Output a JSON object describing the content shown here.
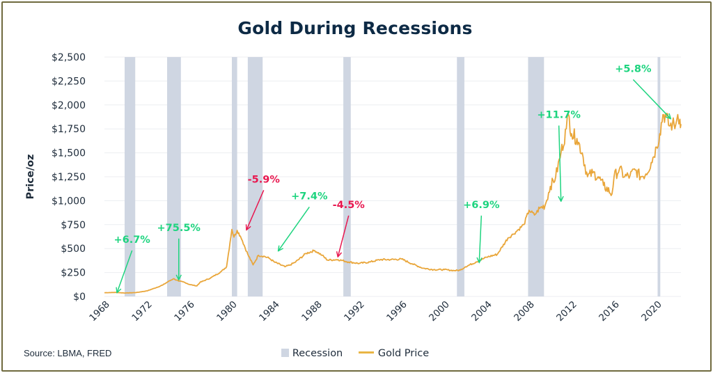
{
  "colors": {
    "recession": "#cfd6e2",
    "gold": "#e9a63a",
    "positive": "#1ed47f",
    "negative": "#e8174f",
    "title": "#0d2a45",
    "grid": "#eceef1",
    "text": "#1d2b3a"
  },
  "source": "Source: LBMA, FRED",
  "chart_data": {
    "type": "line",
    "title": "Gold During Recessions",
    "xlabel": "",
    "ylabel": "Price/oz",
    "xlim": [
      1968,
      2022.3
    ],
    "ylim": [
      0,
      2500
    ],
    "x_ticks": [
      "1968",
      "1972",
      "1976",
      "1980",
      "1984",
      "1988",
      "1992",
      "1996",
      "2000",
      "2004",
      "2008",
      "2012",
      "2016",
      "2020"
    ],
    "y_ticks": [
      "$0",
      "$250",
      "$500",
      "$750",
      "$1,000",
      "$1,250",
      "$1,500",
      "$1,750",
      "$2,000",
      "$2,250",
      "$2,500"
    ],
    "grid": true,
    "legend": {
      "placement": "bottom-center",
      "recession_label": "Recession",
      "gold_label": "Gold Price"
    },
    "recessions": [
      [
        1969.9,
        1970.9
      ],
      [
        1973.9,
        1975.2
      ],
      [
        1980.0,
        1980.5
      ],
      [
        1981.5,
        1982.9
      ],
      [
        1990.5,
        1991.2
      ],
      [
        2001.2,
        2001.9
      ],
      [
        2007.9,
        2009.4
      ],
      [
        2020.1,
        2020.35
      ]
    ],
    "series": [
      {
        "type": "line",
        "x": [
          1968,
          1969,
          1970,
          1971,
          1972,
          1973,
          1973.5,
          1974,
          1974.5,
          1975,
          1975.5,
          1976,
          1976.7,
          1977,
          1978,
          1979,
          1979.5,
          1980.0,
          1980.2,
          1980.5,
          1980.8,
          1981,
          1981.5,
          1982,
          1982.5,
          1983,
          1983.5,
          1984,
          1985,
          1985.5,
          1986,
          1987,
          1987.8,
          1988.5,
          1989,
          1990,
          1991,
          1992,
          1993,
          1994,
          1995,
          1996,
          1997,
          1998,
          1999,
          2000,
          2001,
          2001.5,
          2002,
          2003,
          2004,
          2005,
          2006,
          2006.5,
          2007,
          2007.5,
          2008,
          2008.5,
          2009,
          2009.5,
          2010,
          2010.5,
          2011,
          2011.5,
          2011.7,
          2012,
          2012.5,
          2013,
          2013.5,
          2014,
          2014.5,
          2015,
          2015.8,
          2016,
          2016.5,
          2017,
          2017.5,
          2018,
          2018.5,
          2019,
          2019.5,
          2020,
          2020.3,
          2020.6,
          2020.9,
          2021.2,
          2021.5,
          2021.8,
          2022,
          2022.2,
          2022.3
        ],
        "values": [
          39,
          42,
          36,
          41,
          58,
          97,
          120,
          155,
          185,
          160,
          150,
          125,
          110,
          147,
          193,
          260,
          310,
          700,
          620,
          690,
          630,
          580,
          440,
          330,
          430,
          420,
          400,
          360,
          310,
          330,
          360,
          450,
          480,
          430,
          380,
          385,
          360,
          345,
          360,
          385,
          385,
          390,
          340,
          295,
          280,
          280,
          270,
          275,
          310,
          360,
          410,
          440,
          610,
          650,
          700,
          750,
          900,
          850,
          920,
          950,
          1150,
          1250,
          1500,
          1750,
          1900,
          1700,
          1650,
          1500,
          1250,
          1290,
          1250,
          1160,
          1070,
          1250,
          1330,
          1250,
          1260,
          1320,
          1250,
          1280,
          1400,
          1560,
          1700,
          1900,
          1880,
          1780,
          1800,
          1790,
          1900,
          1850,
          1800
        ]
      }
    ],
    "annotations": [
      {
        "text": "+6.7%",
        "type": "positive",
        "tx": 1970.6,
        "ty": 545,
        "ax": 1969.2,
        "ay": 45
      },
      {
        "text": "+75.5%",
        "type": "positive",
        "tx": 1975.0,
        "ty": 670,
        "ax": 1975.0,
        "ay": 180
      },
      {
        "text": "-5.9%",
        "type": "negative",
        "tx": 1983.0,
        "ty": 1175,
        "ax": 1981.4,
        "ay": 700
      },
      {
        "text": "+7.4%",
        "type": "positive",
        "tx": 1987.3,
        "ty": 1000,
        "ax": 1984.4,
        "ay": 480
      },
      {
        "text": "-4.5%",
        "type": "negative",
        "tx": 1991.0,
        "ty": 910,
        "ax": 1990.0,
        "ay": 420
      },
      {
        "text": "+6.9%",
        "type": "positive",
        "tx": 2003.5,
        "ty": 910,
        "ax": 2003.3,
        "ay": 360
      },
      {
        "text": "+11.7%",
        "type": "positive",
        "tx": 2010.8,
        "ty": 1850,
        "ax": 2011.0,
        "ay": 1000
      },
      {
        "text": "+5.8%",
        "type": "positive",
        "tx": 2017.8,
        "ty": 2330,
        "ax": 2021.3,
        "ay": 1860
      }
    ]
  }
}
